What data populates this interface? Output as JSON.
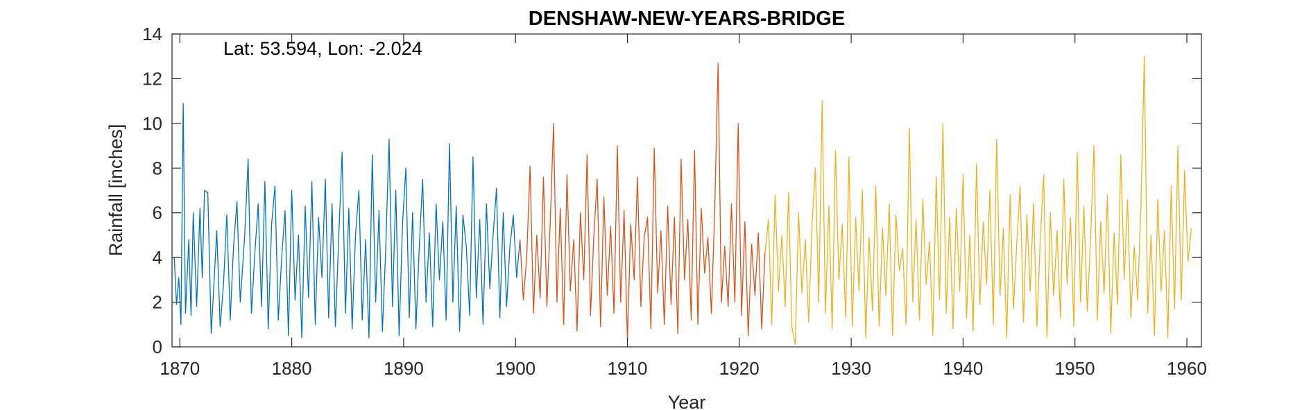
{
  "chart_data": {
    "type": "line",
    "title": "DENSHAW-NEW-YEARS-BRIDGE",
    "annotation": "Lat: 53.594, Lon: -2.024",
    "xlabel": "Year",
    "ylabel": "Rainfall [inches]",
    "xlim": [
      1869.3,
      1961.3
    ],
    "ylim": [
      0,
      14
    ],
    "xticks": [
      1870,
      1880,
      1890,
      1900,
      1910,
      1920,
      1930,
      1940,
      1950,
      1960
    ],
    "yticks": [
      0,
      2,
      4,
      6,
      8,
      10,
      12,
      14
    ],
    "grid": false,
    "legend": "none",
    "series": [
      {
        "color": "#0072BD",
        "x": [
          1869.5,
          1869.7,
          1869.9,
          1870.1,
          1870.3,
          1870.5,
          1870.8,
          1871.0,
          1871.2,
          1871.5,
          1871.8,
          1872.0,
          1872.2,
          1872.5,
          1872.8,
          1873.0,
          1873.3,
          1873.6,
          1873.9,
          1874.2,
          1874.5,
          1874.8,
          1875.1,
          1875.4,
          1875.8,
          1876.1,
          1876.4,
          1876.7,
          1877.0,
          1877.3,
          1877.6,
          1877.9,
          1878.2,
          1878.5,
          1878.8,
          1879.1,
          1879.4,
          1879.7,
          1880.0,
          1880.3,
          1880.6,
          1880.9,
          1881.2,
          1881.5,
          1881.8,
          1882.1,
          1882.4,
          1882.7,
          1883.0,
          1883.3,
          1883.6,
          1883.9,
          1884.2,
          1884.5,
          1884.8,
          1885.1,
          1885.4,
          1885.7,
          1886.0,
          1886.3,
          1886.6,
          1886.9,
          1887.2,
          1887.5,
          1887.8,
          1888.1,
          1888.4,
          1888.7,
          1889.0,
          1889.3,
          1889.6,
          1889.9,
          1890.2,
          1890.5,
          1890.8,
          1891.1,
          1891.4,
          1891.7,
          1892.0,
          1892.3,
          1892.6,
          1892.9,
          1893.2,
          1893.5,
          1893.8,
          1894.1,
          1894.4,
          1894.7,
          1895.0,
          1895.3,
          1895.6,
          1895.9,
          1896.2,
          1896.5,
          1896.8,
          1897.1,
          1897.4,
          1897.7,
          1898.0,
          1898.3,
          1898.6,
          1898.9,
          1899.2,
          1899.5,
          1899.8,
          1900.1,
          1900.4
        ],
        "y": [
          4.0,
          1.9,
          3.1,
          1.0,
          10.9,
          1.5,
          4.8,
          1.4,
          6.0,
          1.8,
          6.2,
          3.1,
          7.0,
          6.9,
          0.6,
          2.4,
          5.2,
          0.9,
          2.8,
          5.9,
          1.2,
          4.5,
          6.5,
          2.0,
          5.0,
          8.4,
          1.5,
          4.2,
          6.4,
          1.8,
          7.4,
          0.8,
          5.5,
          7.2,
          1.2,
          4.0,
          6.1,
          0.5,
          7.0,
          2.1,
          5.0,
          0.4,
          6.3,
          2.2,
          7.4,
          1.0,
          5.8,
          3.1,
          7.5,
          1.3,
          6.4,
          0.9,
          4.9,
          8.7,
          1.5,
          6.2,
          0.8,
          5.0,
          7.0,
          1.2,
          4.8,
          0.4,
          8.6,
          2.0,
          6.1,
          0.7,
          4.4,
          9.3,
          1.8,
          7.0,
          0.5,
          5.5,
          8.0,
          1.3,
          6.0,
          0.8,
          4.5,
          7.5,
          2.0,
          5.1,
          0.9,
          6.4,
          3.0,
          5.6,
          1.2,
          9.1,
          2.0,
          6.3,
          0.7,
          5.9,
          4.5,
          1.4,
          8.5,
          2.2,
          5.7,
          1.0,
          6.4,
          2.6,
          5.0,
          7.1,
          1.3,
          6.0,
          1.8,
          4.5,
          5.9,
          3.1,
          4.8
        ]
      },
      {
        "color": "#D95319",
        "x": [
          1900.4,
          1900.7,
          1901.0,
          1901.3,
          1901.6,
          1901.9,
          1902.2,
          1902.5,
          1902.8,
          1903.1,
          1903.4,
          1903.7,
          1904.0,
          1904.3,
          1904.6,
          1904.9,
          1905.2,
          1905.5,
          1905.8,
          1906.1,
          1906.4,
          1906.7,
          1907.0,
          1907.3,
          1907.6,
          1907.9,
          1908.2,
          1908.5,
          1908.8,
          1909.1,
          1909.4,
          1909.7,
          1910.0,
          1910.3,
          1910.6,
          1910.9,
          1911.2,
          1911.5,
          1911.8,
          1912.1,
          1912.4,
          1912.7,
          1913.0,
          1913.3,
          1913.6,
          1913.9,
          1914.2,
          1914.5,
          1914.8,
          1915.1,
          1915.4,
          1915.7,
          1916.0,
          1916.3,
          1916.6,
          1916.9,
          1917.2,
          1917.5,
          1917.8,
          1918.1,
          1918.4,
          1918.7,
          1919.0,
          1919.3,
          1919.6,
          1919.9,
          1920.2,
          1920.5,
          1920.8,
          1921.1,
          1921.4,
          1921.7,
          1922.0,
          1922.3
        ],
        "y": [
          4.8,
          2.1,
          4.0,
          8.1,
          1.5,
          5.0,
          2.2,
          7.6,
          1.8,
          5.5,
          10.0,
          2.0,
          6.2,
          1.0,
          7.7,
          2.5,
          4.8,
          0.7,
          6.0,
          3.0,
          8.6,
          1.4,
          5.0,
          7.5,
          0.9,
          6.7,
          2.3,
          5.4,
          1.5,
          9.0,
          2.0,
          6.1,
          0.3,
          5.5,
          3.0,
          7.6,
          1.8,
          4.9,
          5.8,
          0.8,
          8.9,
          2.4,
          5.2,
          1.0,
          6.3,
          1.9,
          5.8,
          0.6,
          8.4,
          3.0,
          5.7,
          1.2,
          8.8,
          1.0,
          6.2,
          3.3,
          4.9,
          1.5,
          6.0,
          12.7,
          2.0,
          4.5,
          1.8,
          6.4,
          2.0,
          10.0,
          1.4,
          5.6,
          0.5,
          4.6,
          2.3,
          5.1,
          0.8,
          4.2
        ]
      },
      {
        "color": "#EDB120",
        "x": [
          1922.3,
          1922.6,
          1922.9,
          1923.2,
          1923.5,
          1923.8,
          1924.1,
          1924.4,
          1924.7,
          1925.0,
          1925.3,
          1925.6,
          1925.9,
          1926.2,
          1926.5,
          1926.8,
          1927.1,
          1927.4,
          1927.7,
          1928.0,
          1928.3,
          1928.6,
          1928.9,
          1929.2,
          1929.5,
          1929.8,
          1930.1,
          1930.4,
          1930.7,
          1931.0,
          1931.3,
          1931.6,
          1931.9,
          1932.2,
          1932.5,
          1932.8,
          1933.1,
          1933.4,
          1933.7,
          1934.0,
          1934.3,
          1934.6,
          1934.9,
          1935.2,
          1935.5,
          1935.8,
          1936.1,
          1936.4,
          1936.7,
          1937.0,
          1937.3,
          1937.6,
          1937.9,
          1938.2,
          1938.5,
          1938.8,
          1939.1,
          1939.4,
          1939.7,
          1940.0,
          1940.3,
          1940.6,
          1940.9,
          1941.2,
          1941.5,
          1941.8,
          1942.1,
          1942.4,
          1942.7,
          1943.0,
          1943.3,
          1943.6,
          1943.9,
          1944.2,
          1944.5,
          1944.8,
          1945.1,
          1945.4,
          1945.7,
          1946.0,
          1946.3,
          1946.6,
          1946.9,
          1947.2,
          1947.5,
          1947.8,
          1948.1,
          1948.4,
          1948.7,
          1949.0,
          1949.3,
          1949.6,
          1949.9,
          1950.2,
          1950.5,
          1950.8,
          1951.1,
          1951.4,
          1951.7,
          1952.0,
          1952.3,
          1952.6,
          1952.9,
          1953.2,
          1953.5,
          1953.8,
          1954.1,
          1954.4,
          1954.7,
          1955.0,
          1955.3,
          1955.6,
          1955.9,
          1956.2,
          1956.5,
          1956.8,
          1957.1,
          1957.4,
          1957.7,
          1958.0,
          1958.3,
          1958.6,
          1958.9,
          1959.2,
          1959.5,
          1959.8,
          1960.1,
          1960.4
        ],
        "y": [
          4.2,
          5.7,
          1.0,
          6.8,
          2.5,
          5.0,
          1.8,
          6.9,
          0.9,
          0.1,
          6.0,
          2.4,
          4.8,
          1.1,
          5.5,
          8.0,
          2.0,
          11.0,
          1.5,
          6.3,
          0.8,
          8.8,
          3.0,
          5.5,
          1.3,
          8.5,
          0.9,
          5.8,
          2.5,
          7.0,
          0.4,
          4.9,
          1.6,
          7.2,
          0.9,
          5.3,
          2.3,
          6.4,
          0.5,
          5.9,
          3.4,
          4.4,
          1.0,
          9.8,
          2.0,
          5.7,
          1.2,
          6.6,
          2.8,
          4.7,
          0.5,
          7.6,
          2.1,
          10.0,
          1.5,
          5.8,
          0.8,
          6.2,
          2.5,
          7.7,
          1.3,
          5.0,
          0.7,
          8.2,
          1.9,
          5.6,
          2.8,
          7.0,
          1.0,
          9.3,
          2.3,
          5.3,
          0.4,
          6.8,
          1.7,
          4.6,
          7.2,
          1.1,
          5.9,
          2.5,
          6.4,
          0.9,
          4.8,
          7.7,
          0.4,
          6.0,
          2.3,
          5.2,
          1.3,
          7.5,
          2.8,
          5.8,
          0.9,
          8.7,
          2.0,
          6.3,
          1.6,
          4.9,
          9.0,
          1.2,
          5.6,
          2.4,
          6.8,
          0.6,
          5.1,
          1.9,
          8.6,
          3.0,
          6.6,
          1.3,
          4.5,
          2.1,
          6.4,
          13.0,
          1.5,
          5.0,
          0.5,
          6.6,
          2.5,
          5.2,
          0.4,
          7.2,
          1.7,
          9.0,
          2.1,
          7.9,
          3.8,
          5.3
        ]
      }
    ]
  }
}
